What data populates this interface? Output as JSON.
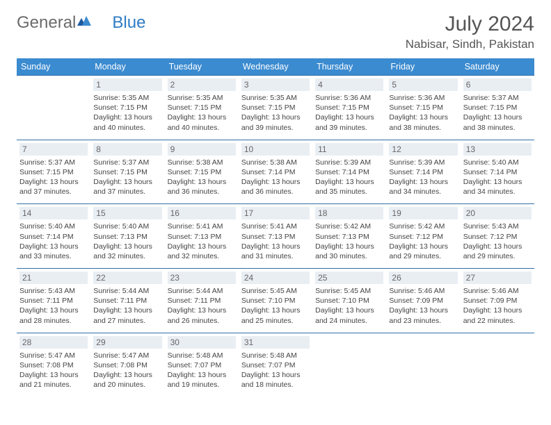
{
  "brand": {
    "part1": "General",
    "part2": "Blue"
  },
  "title": "July 2024",
  "location": "Nabisar, Sindh, Pakistan",
  "colors": {
    "header_bg": "#3b8bd0",
    "header_text": "#ffffff",
    "row_border": "#2f6fa8",
    "daynum_bg": "#e9eef3",
    "text": "#444444",
    "brand_gray": "#6b6b6b",
    "brand_blue": "#2e7cc4"
  },
  "day_labels": [
    "Sunday",
    "Monday",
    "Tuesday",
    "Wednesday",
    "Thursday",
    "Friday",
    "Saturday"
  ],
  "weeks": [
    [
      null,
      {
        "n": "1",
        "sr": "5:35 AM",
        "ss": "7:15 PM",
        "dl": "13 hours and 40 minutes."
      },
      {
        "n": "2",
        "sr": "5:35 AM",
        "ss": "7:15 PM",
        "dl": "13 hours and 40 minutes."
      },
      {
        "n": "3",
        "sr": "5:35 AM",
        "ss": "7:15 PM",
        "dl": "13 hours and 39 minutes."
      },
      {
        "n": "4",
        "sr": "5:36 AM",
        "ss": "7:15 PM",
        "dl": "13 hours and 39 minutes."
      },
      {
        "n": "5",
        "sr": "5:36 AM",
        "ss": "7:15 PM",
        "dl": "13 hours and 38 minutes."
      },
      {
        "n": "6",
        "sr": "5:37 AM",
        "ss": "7:15 PM",
        "dl": "13 hours and 38 minutes."
      }
    ],
    [
      {
        "n": "7",
        "sr": "5:37 AM",
        "ss": "7:15 PM",
        "dl": "13 hours and 37 minutes."
      },
      {
        "n": "8",
        "sr": "5:37 AM",
        "ss": "7:15 PM",
        "dl": "13 hours and 37 minutes."
      },
      {
        "n": "9",
        "sr": "5:38 AM",
        "ss": "7:15 PM",
        "dl": "13 hours and 36 minutes."
      },
      {
        "n": "10",
        "sr": "5:38 AM",
        "ss": "7:14 PM",
        "dl": "13 hours and 36 minutes."
      },
      {
        "n": "11",
        "sr": "5:39 AM",
        "ss": "7:14 PM",
        "dl": "13 hours and 35 minutes."
      },
      {
        "n": "12",
        "sr": "5:39 AM",
        "ss": "7:14 PM",
        "dl": "13 hours and 34 minutes."
      },
      {
        "n": "13",
        "sr": "5:40 AM",
        "ss": "7:14 PM",
        "dl": "13 hours and 34 minutes."
      }
    ],
    [
      {
        "n": "14",
        "sr": "5:40 AM",
        "ss": "7:14 PM",
        "dl": "13 hours and 33 minutes."
      },
      {
        "n": "15",
        "sr": "5:40 AM",
        "ss": "7:13 PM",
        "dl": "13 hours and 32 minutes."
      },
      {
        "n": "16",
        "sr": "5:41 AM",
        "ss": "7:13 PM",
        "dl": "13 hours and 32 minutes."
      },
      {
        "n": "17",
        "sr": "5:41 AM",
        "ss": "7:13 PM",
        "dl": "13 hours and 31 minutes."
      },
      {
        "n": "18",
        "sr": "5:42 AM",
        "ss": "7:13 PM",
        "dl": "13 hours and 30 minutes."
      },
      {
        "n": "19",
        "sr": "5:42 AM",
        "ss": "7:12 PM",
        "dl": "13 hours and 29 minutes."
      },
      {
        "n": "20",
        "sr": "5:43 AM",
        "ss": "7:12 PM",
        "dl": "13 hours and 29 minutes."
      }
    ],
    [
      {
        "n": "21",
        "sr": "5:43 AM",
        "ss": "7:11 PM",
        "dl": "13 hours and 28 minutes."
      },
      {
        "n": "22",
        "sr": "5:44 AM",
        "ss": "7:11 PM",
        "dl": "13 hours and 27 minutes."
      },
      {
        "n": "23",
        "sr": "5:44 AM",
        "ss": "7:11 PM",
        "dl": "13 hours and 26 minutes."
      },
      {
        "n": "24",
        "sr": "5:45 AM",
        "ss": "7:10 PM",
        "dl": "13 hours and 25 minutes."
      },
      {
        "n": "25",
        "sr": "5:45 AM",
        "ss": "7:10 PM",
        "dl": "13 hours and 24 minutes."
      },
      {
        "n": "26",
        "sr": "5:46 AM",
        "ss": "7:09 PM",
        "dl": "13 hours and 23 minutes."
      },
      {
        "n": "27",
        "sr": "5:46 AM",
        "ss": "7:09 PM",
        "dl": "13 hours and 22 minutes."
      }
    ],
    [
      {
        "n": "28",
        "sr": "5:47 AM",
        "ss": "7:08 PM",
        "dl": "13 hours and 21 minutes."
      },
      {
        "n": "29",
        "sr": "5:47 AM",
        "ss": "7:08 PM",
        "dl": "13 hours and 20 minutes."
      },
      {
        "n": "30",
        "sr": "5:48 AM",
        "ss": "7:07 PM",
        "dl": "13 hours and 19 minutes."
      },
      {
        "n": "31",
        "sr": "5:48 AM",
        "ss": "7:07 PM",
        "dl": "13 hours and 18 minutes."
      },
      null,
      null,
      null
    ]
  ],
  "labels": {
    "sunrise": "Sunrise:",
    "sunset": "Sunset:",
    "daylight": "Daylight:"
  }
}
